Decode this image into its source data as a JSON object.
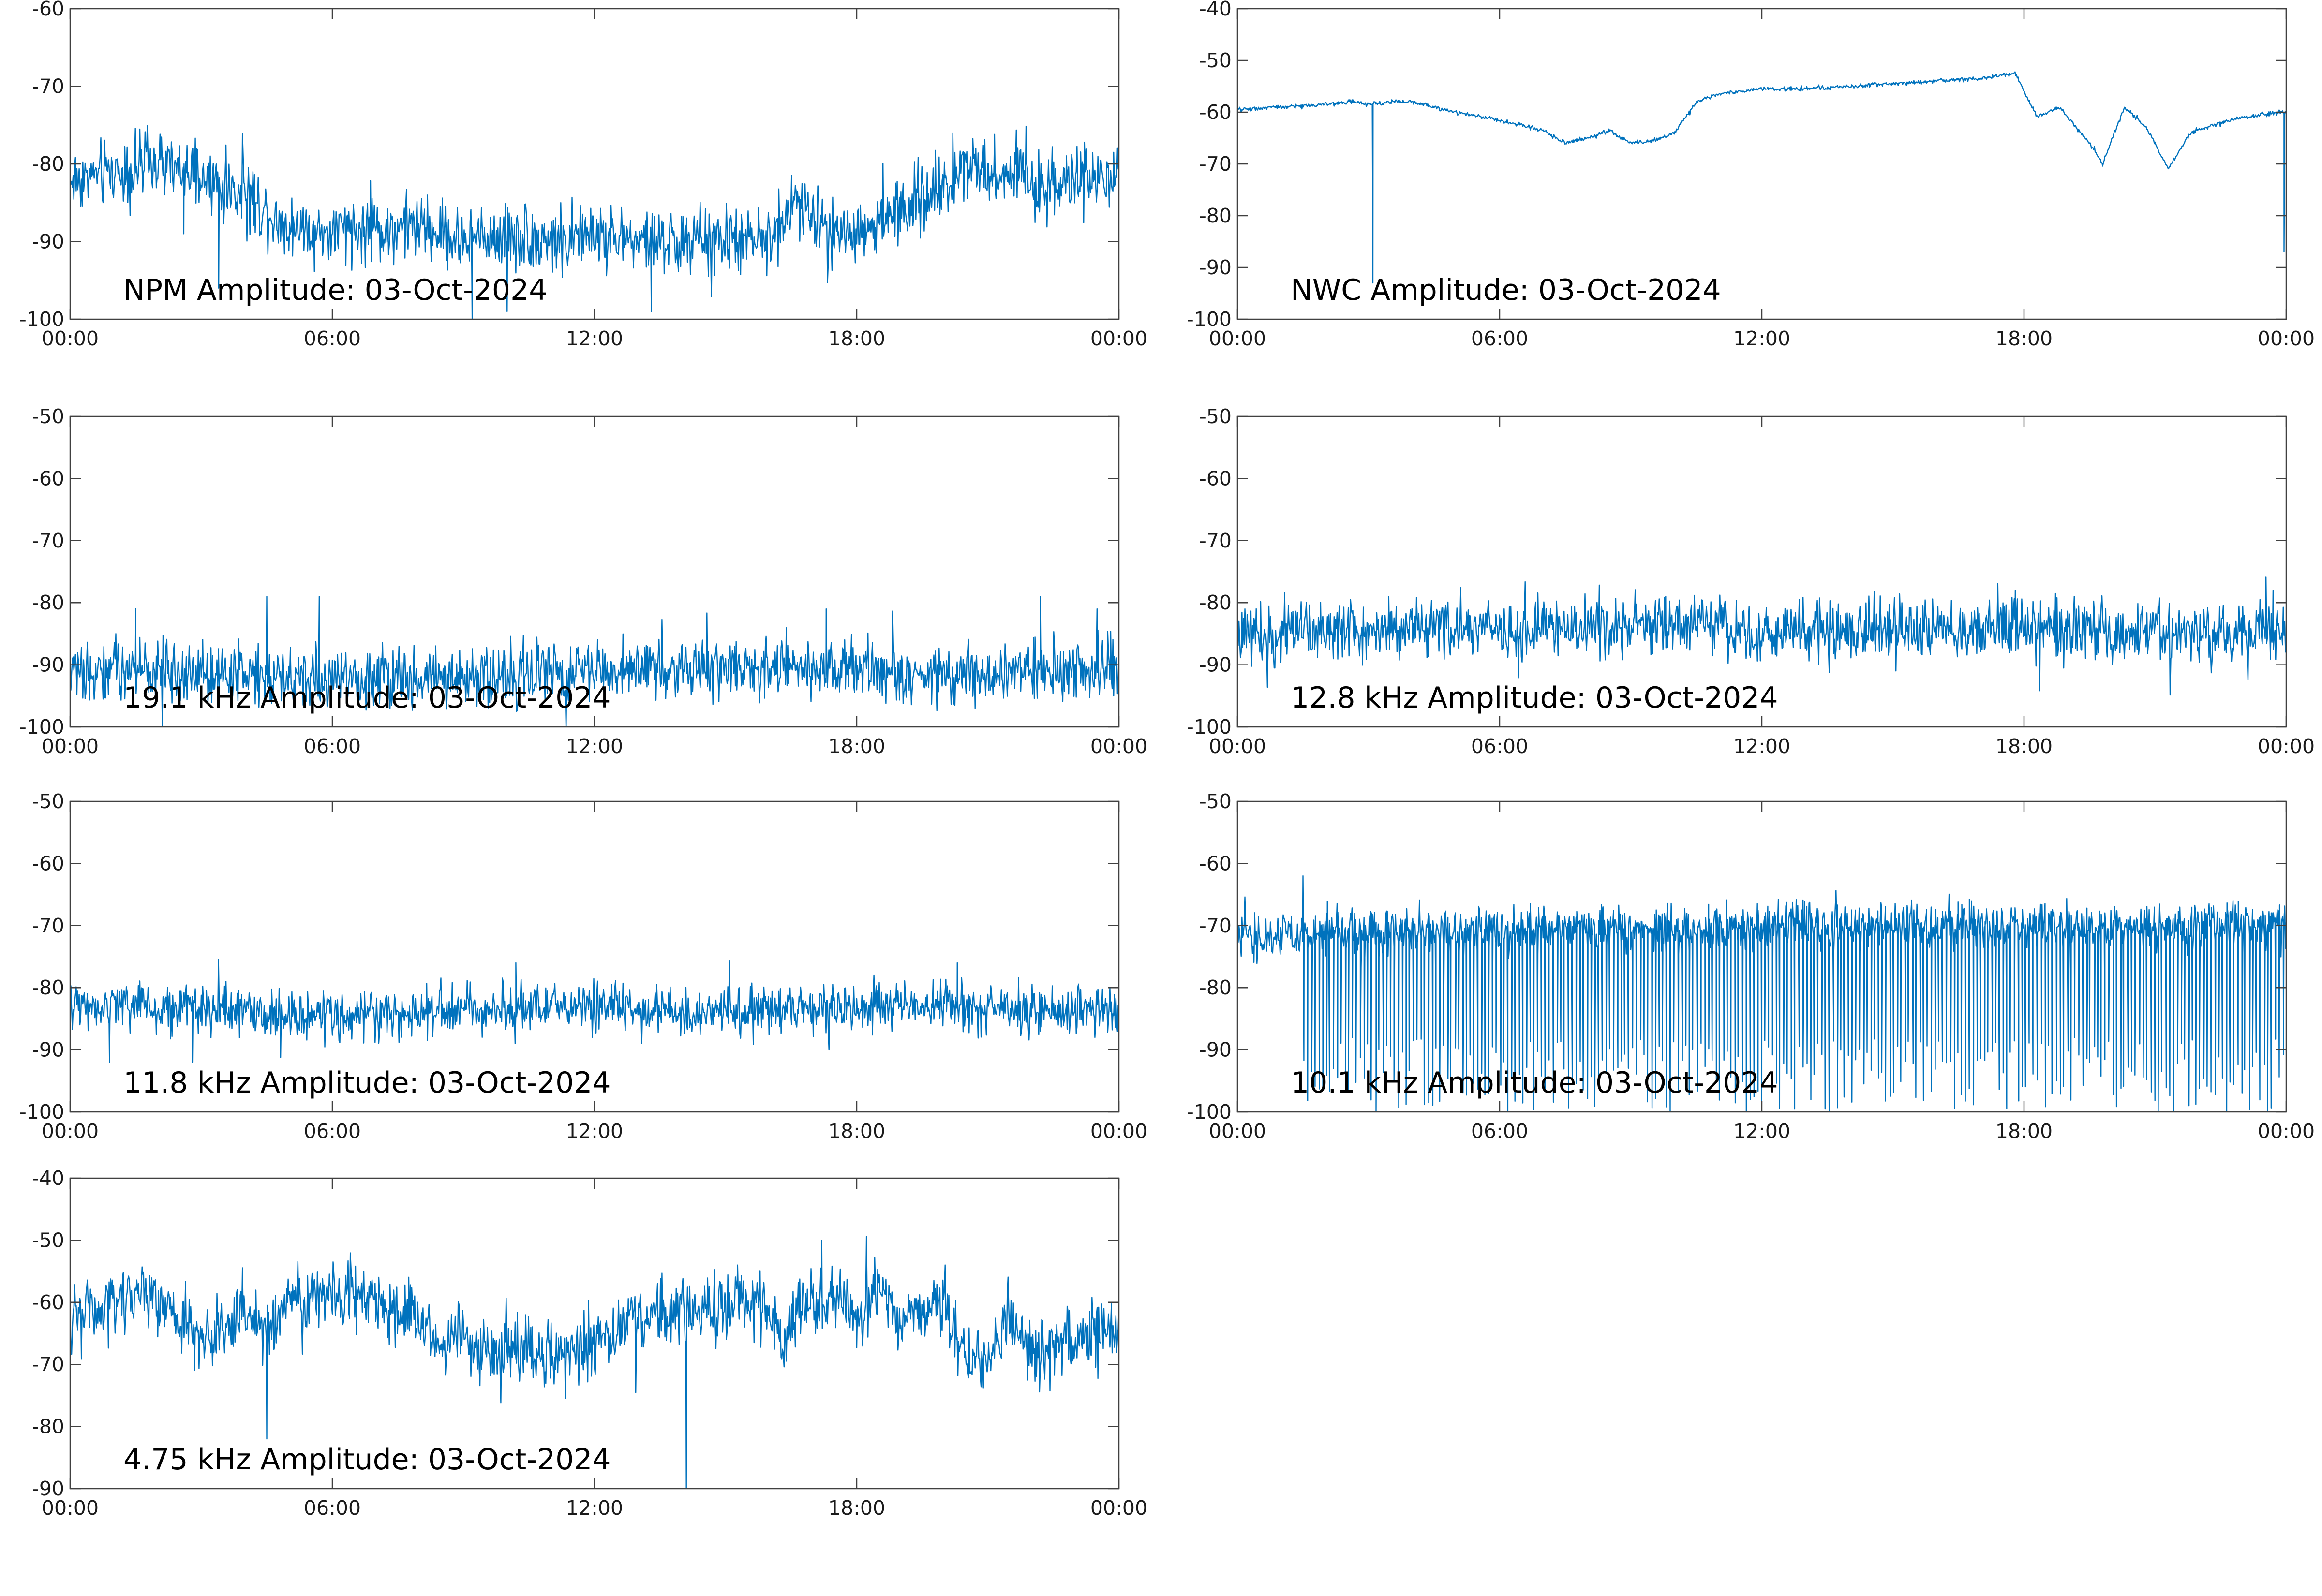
{
  "colors": {
    "series": "#0072bd",
    "axes": "#404040",
    "text": "#000000"
  },
  "x_ticks": [
    "00:00",
    "06:00",
    "12:00",
    "18:00",
    "00:00"
  ],
  "chart_data": [
    {
      "type": "line",
      "title": "NPM Amplitude: 03-Oct-2024",
      "xlim": [
        0,
        24
      ],
      "ylim": [
        -100,
        -60
      ],
      "yticks": [
        -100,
        -90,
        -80,
        -70,
        -60
      ],
      "noise": 3.2,
      "spikes": [
        [
          3.4,
          -96
        ],
        [
          2.6,
          -89
        ],
        [
          9.2,
          -100
        ],
        [
          10.0,
          -99
        ],
        [
          13.3,
          -99
        ],
        [
          20.2,
          -76
        ]
      ],
      "x": [
        0,
        1,
        2,
        3,
        4,
        5,
        6,
        7,
        8,
        9,
        10,
        11,
        12,
        13,
        14,
        15,
        16,
        16.6,
        17,
        18,
        19,
        20,
        20.6,
        21,
        21.6,
        22,
        23,
        24
      ],
      "values": [
        -82,
        -81,
        -80,
        -82,
        -84,
        -88,
        -89,
        -88.5,
        -88,
        -90,
        -89,
        -90,
        -89,
        -90,
        -90,
        -90,
        -90,
        -85,
        -87,
        -89,
        -86,
        -83,
        -79,
        -82,
        -80,
        -83,
        -82,
        -82
      ]
    },
    {
      "type": "line",
      "title": "NWC Amplitude: 03-Oct-2024",
      "xlim": [
        0,
        24
      ],
      "ylim": [
        -100,
        -40
      ],
      "yticks": [
        -100,
        -90,
        -80,
        -70,
        -60,
        -50,
        -40
      ],
      "noise": 0.3,
      "spikes": [
        [
          3.1,
          -93
        ],
        [
          23.95,
          -87
        ]
      ],
      "x": [
        0,
        1,
        2,
        2.6,
        3,
        3.5,
        4,
        5,
        6,
        7,
        7.5,
        8,
        8.5,
        9,
        9.5,
        10,
        10.5,
        11,
        12,
        13,
        14,
        15,
        16,
        17,
        17.8,
        18.3,
        18.8,
        19.5,
        19.8,
        20.3,
        20.8,
        21.3,
        21.8,
        22.5,
        23,
        23.9,
        24
      ],
      "values": [
        -59.5,
        -59,
        -58.5,
        -58,
        -58.5,
        -58,
        -58,
        -60,
        -61.5,
        -63.5,
        -66,
        -65,
        -63.5,
        -66,
        -65.5,
        -64,
        -58,
        -56.5,
        -55.5,
        -55.5,
        -55,
        -54.5,
        -54,
        -53.5,
        -52.5,
        -61,
        -59,
        -66,
        -70,
        -59,
        -63,
        -71,
        -64,
        -62,
        -61,
        -60,
        -60
      ]
    },
    {
      "type": "line",
      "title": "19.1 kHz Amplitude: 03-Oct-2024",
      "xlim": [
        0,
        24
      ],
      "ylim": [
        -100,
        -50
      ],
      "yticks": [
        -100,
        -90,
        -80,
        -70,
        -60,
        -50
      ],
      "noise": 3.6,
      "spikes": [
        [
          1.5,
          -81
        ],
        [
          4.5,
          -79
        ],
        [
          5.7,
          -79
        ],
        [
          17.3,
          -81
        ],
        [
          22.2,
          -79
        ],
        [
          23.5,
          -81
        ]
      ],
      "x": [
        0,
        2,
        4,
        6,
        8,
        10,
        12,
        14,
        16,
        18,
        20,
        22,
        24
      ],
      "values": [
        -91,
        -91,
        -91,
        -92,
        -92,
        -91.5,
        -91,
        -90.5,
        -90.5,
        -91,
        -92,
        -91,
        -91
      ]
    },
    {
      "type": "line",
      "title": "12.8 kHz Amplitude: 03-Oct-2024",
      "xlim": [
        0,
        24
      ],
      "ylim": [
        -100,
        -50
      ],
      "yticks": [
        -100,
        -90,
        -80,
        -70,
        -60,
        -50
      ],
      "noise": 3.6,
      "spikes": [
        [
          9.8,
          -79
        ],
        [
          17.8,
          -78
        ],
        [
          23.7,
          -78
        ]
      ],
      "x": [
        0,
        2,
        4,
        6,
        8,
        10,
        12,
        14,
        16,
        18,
        20,
        22,
        24
      ],
      "values": [
        -85,
        -84,
        -84,
        -84.5,
        -84.5,
        -84,
        -84.5,
        -84.5,
        -84.5,
        -84,
        -85,
        -85,
        -85
      ]
    },
    {
      "type": "line",
      "title": "11.8 kHz Amplitude: 03-Oct-2024",
      "xlim": [
        0,
        24
      ],
      "ylim": [
        -100,
        -50
      ],
      "yticks": [
        -100,
        -90,
        -80,
        -70,
        -60,
        -50
      ],
      "noise": 3.0,
      "spikes": [
        [
          0.9,
          -92
        ],
        [
          2.8,
          -92
        ],
        [
          10.2,
          -76
        ],
        [
          20.3,
          -76
        ]
      ],
      "x": [
        0,
        2,
        4,
        6,
        8,
        10,
        12,
        14,
        16,
        18,
        20,
        22,
        24
      ],
      "values": [
        -83,
        -83,
        -84,
        -85,
        -84,
        -83,
        -83,
        -84,
        -84,
        -83,
        -83,
        -83.5,
        -84
      ]
    },
    {
      "type": "line",
      "title": "10.1 kHz Amplitude: 03-Oct-2024",
      "xlim": [
        0,
        24
      ],
      "ylim": [
        -100,
        -50
      ],
      "yticks": [
        -100,
        -90,
        -80,
        -70,
        -60,
        -50
      ],
      "noise": 2.8,
      "drops": 260,
      "drop_start": 1.5,
      "spikes": [
        [
          1.5,
          -62
        ]
      ],
      "x": [
        0,
        2,
        4,
        6,
        8,
        10,
        12,
        14,
        16,
        18,
        20,
        22,
        24
      ],
      "values": [
        -72,
        -71,
        -71,
        -71,
        -70.5,
        -70.5,
        -70,
        -70,
        -70,
        -70,
        -70,
        -70,
        -70
      ]
    },
    {
      "type": "line",
      "title": "4.75 kHz Amplitude: 03-Oct-2024",
      "xlim": [
        0,
        24
      ],
      "ylim": [
        -90,
        -40
      ],
      "yticks": [
        -90,
        -80,
        -70,
        -60,
        -50,
        -40
      ],
      "noise": 4.0,
      "spikes": [
        [
          14.1,
          -90
        ],
        [
          4.5,
          -82
        ],
        [
          17.2,
          -50
        ]
      ],
      "x": [
        0,
        1,
        1.5,
        2,
        3,
        4,
        4.5,
        5,
        6,
        7,
        7.5,
        8,
        8.5,
        9,
        9.5,
        10,
        11,
        12,
        13,
        14,
        15,
        16,
        16.3,
        16.7,
        17,
        17.5,
        18,
        18.5,
        19,
        20,
        20.5,
        21,
        21.5,
        22,
        23,
        24
      ],
      "values": [
        -63,
        -60,
        -58,
        -60,
        -66,
        -62,
        -65,
        -60,
        -58,
        -60,
        -61,
        -64,
        -67,
        -65,
        -70,
        -66,
        -70,
        -66,
        -63,
        -62,
        -61,
        -61,
        -68,
        -60,
        -62,
        -58,
        -63,
        -57,
        -63,
        -60,
        -68,
        -70,
        -62,
        -68,
        -66,
        -64
      ]
    }
  ]
}
